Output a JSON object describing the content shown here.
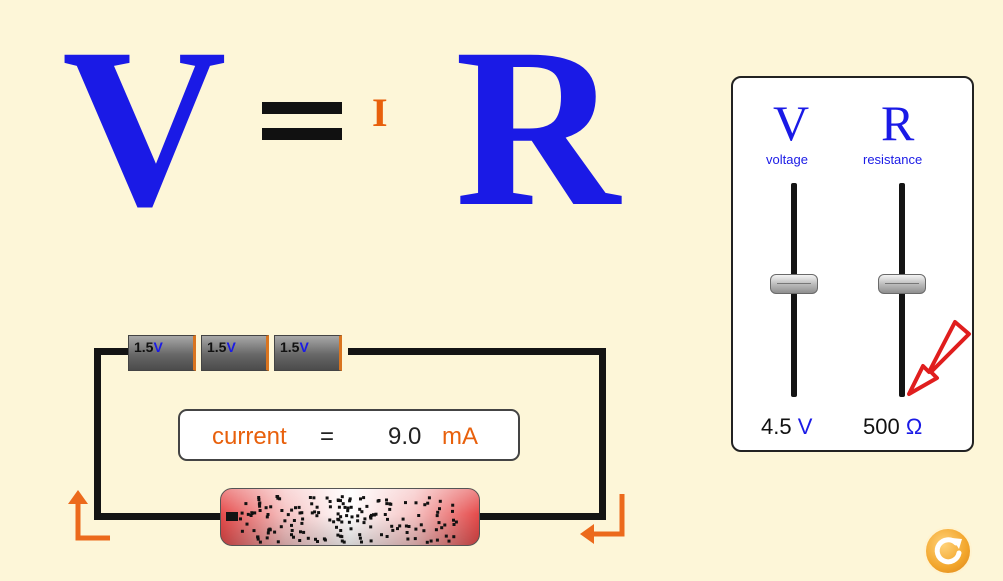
{
  "equation": {
    "voltage_symbol": "V",
    "equals": "=",
    "current_symbol": "I",
    "resistance_symbol": "R"
  },
  "controls": {
    "voltage": {
      "symbol": "V",
      "label": "voltage",
      "value": "4.5",
      "unit": "V",
      "slider_fraction": 0.5
    },
    "resistance": {
      "symbol": "R",
      "label": "resistance",
      "value": "500",
      "unit": "Ω",
      "slider_fraction": 0.5
    }
  },
  "circuit": {
    "batteries": [
      {
        "value": "1.5",
        "unit": "V"
      },
      {
        "value": "1.5",
        "unit": "V"
      },
      {
        "value": "1.5",
        "unit": "V"
      }
    ],
    "current": {
      "label": "current",
      "equals": "=",
      "value": "9.0",
      "unit": "mA"
    }
  },
  "colors": {
    "background": "#fdf6d8",
    "symbol_blue": "#1a1ae6",
    "accent_orange": "#e8600c",
    "wire": "#141414"
  },
  "icons": {
    "reset": "reset-icon",
    "current_arrow": "current-direction-arrow-icon",
    "hint_arrow": "hint-arrow-icon"
  }
}
